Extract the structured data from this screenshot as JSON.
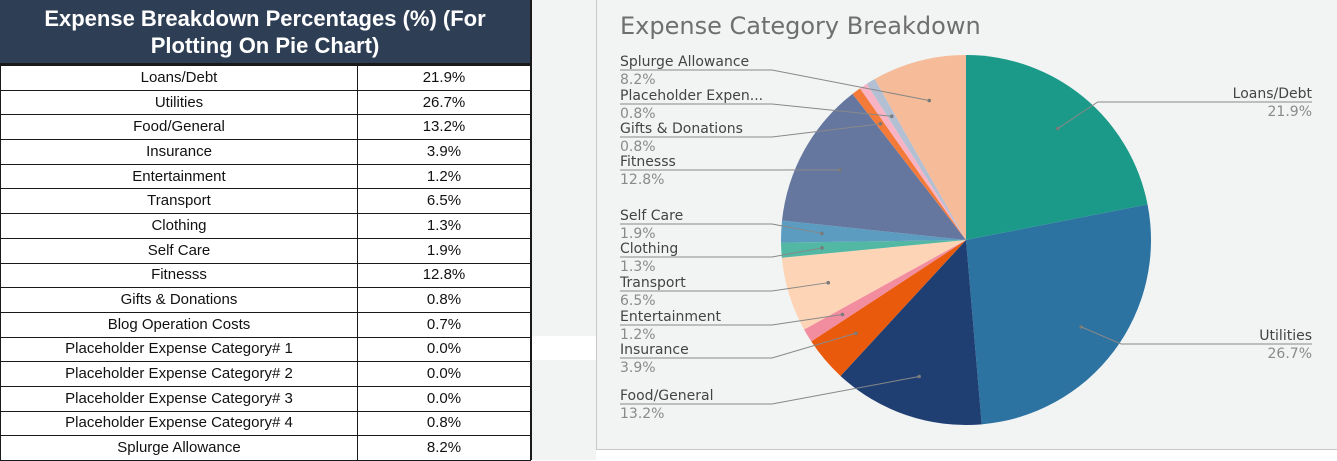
{
  "table": {
    "title": "Expense Breakdown Percentages (%) (For Plotting On Pie Chart)",
    "rows": [
      {
        "label": "Loans/Debt",
        "value": "21.9%"
      },
      {
        "label": "Utilities",
        "value": "26.7%"
      },
      {
        "label": "Food/General",
        "value": "13.2%"
      },
      {
        "label": "Insurance",
        "value": "3.9%"
      },
      {
        "label": "Entertainment",
        "value": "1.2%"
      },
      {
        "label": "Transport",
        "value": "6.5%"
      },
      {
        "label": "Clothing",
        "value": "1.3%"
      },
      {
        "label": "Self Care",
        "value": "1.9%"
      },
      {
        "label": "Fitnesss",
        "value": "12.8%"
      },
      {
        "label": "Gifts & Donations",
        "value": "0.8%"
      },
      {
        "label": "Blog Operation Costs",
        "value": "0.7%"
      },
      {
        "label": "Placeholder Expense Category# 1",
        "value": "0.0%"
      },
      {
        "label": "Placeholder Expense Category# 2",
        "value": "0.0%"
      },
      {
        "label": "Placeholder Expense Category# 3",
        "value": "0.0%"
      },
      {
        "label": "Placeholder Expense Category# 4",
        "value": "0.8%"
      },
      {
        "label": "Splurge Allowance",
        "value": "8.2%"
      }
    ]
  },
  "chart_data": {
    "type": "pie",
    "title": "Expense Category Breakdown",
    "slices": [
      {
        "label": "Loans/Debt",
        "display_label": "Loans/Debt",
        "value": 21.9,
        "value_label": "21.9%",
        "color": "#1c9a89"
      },
      {
        "label": "Utilities",
        "display_label": "Utilities",
        "value": 26.7,
        "value_label": "26.7%",
        "color": "#2c73a1"
      },
      {
        "label": "Food/General",
        "display_label": "Food/General",
        "value": 13.2,
        "value_label": "13.2%",
        "color": "#1f3f73"
      },
      {
        "label": "Insurance",
        "display_label": "Insurance",
        "value": 3.9,
        "value_label": "3.9%",
        "color": "#ea5a0c"
      },
      {
        "label": "Entertainment",
        "display_label": "Entertainment",
        "value": 1.2,
        "value_label": "1.2%",
        "color": "#f28da0"
      },
      {
        "label": "Transport",
        "display_label": "Transport",
        "value": 6.5,
        "value_label": "6.5%",
        "color": "#fdd4b5"
      },
      {
        "label": "Clothing",
        "display_label": "Clothing",
        "value": 1.3,
        "value_label": "1.3%",
        "color": "#52b8a4"
      },
      {
        "label": "Self Care",
        "display_label": "Self Care",
        "value": 1.9,
        "value_label": "1.9%",
        "color": "#5b9cc0"
      },
      {
        "label": "Fitnesss",
        "display_label": "Fitnesss",
        "value": 12.8,
        "value_label": "12.8%",
        "color": "#66779f"
      },
      {
        "label": "Gifts & Donations",
        "display_label": "Gifts & Donations",
        "value": 0.8,
        "value_label": "0.8%",
        "color": "#f47a3a"
      },
      {
        "label": "Blog Operation Costs",
        "display_label": "",
        "value": 0.7,
        "value_label": "",
        "color": "#f8b4c4"
      },
      {
        "label": "Placeholder Expense Category# 4",
        "display_label": "Placeholder Expen...",
        "value": 0.8,
        "value_label": "0.8%",
        "color": "#b3bfd2"
      },
      {
        "label": "Splurge Allowance",
        "display_label": "Splurge Allowance",
        "value": 8.2,
        "value_label": "8.2%",
        "color": "#f6bb98"
      }
    ],
    "label_color": "#444444",
    "value_color": "#8a8a8a",
    "title_color": "#6f6f6f"
  }
}
